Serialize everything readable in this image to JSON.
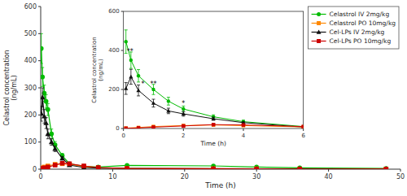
{
  "chart_data": [
    {
      "type": "line",
      "xlabel": "Time (h)",
      "ylabel": "Celastrol concentration\n(ng/mL)",
      "xlim": [
        0,
        50
      ],
      "ylim": [
        0,
        600
      ],
      "xticks": [
        0,
        10,
        20,
        30,
        40,
        50
      ],
      "yticks": [
        0,
        100,
        200,
        300,
        400,
        500,
        600
      ],
      "legend": "upper right",
      "series": [
        {
          "name": "Celastrol IV 2mg/kg",
          "color": "#00bb00",
          "marker": "circle",
          "x": [
            0.083,
            0.25,
            0.5,
            0.75,
            1,
            1.5,
            2,
            3,
            4,
            6,
            8,
            12,
            24,
            30,
            36,
            48
          ],
          "values": [
            445,
            340,
            280,
            250,
            220,
            130,
            90,
            50,
            20,
            10,
            8,
            14,
            12,
            8,
            5,
            3
          ],
          "errors": [
            55,
            35,
            30,
            25,
            22,
            18,
            12,
            8,
            5,
            3,
            2,
            3,
            3,
            2,
            1,
            1
          ]
        },
        {
          "name": "Celastrol PO 10mg/kg",
          "color": "#ff8800",
          "marker": "square",
          "x": [
            0.25,
            0.5,
            1,
            2,
            3,
            4,
            6,
            8,
            12,
            24,
            30,
            36,
            48
          ],
          "values": [
            5,
            8,
            12,
            18,
            20,
            18,
            10,
            5,
            3,
            2,
            1.5,
            1,
            0.5
          ],
          "errors": [
            1,
            1.5,
            2,
            3,
            3,
            3,
            2,
            1,
            0.5,
            0.5,
            0.5,
            0.3,
            0.2
          ]
        },
        {
          "name": "Cel-LPs IV 2mg/kg",
          "color": "#111111",
          "marker": "triangle",
          "x": [
            0.083,
            0.25,
            0.5,
            0.75,
            1,
            1.5,
            2,
            3,
            4,
            6,
            8,
            12,
            24,
            30,
            36,
            48
          ],
          "values": [
            205,
            265,
            195,
            170,
            130,
            100,
            75,
            40,
            15,
            6,
            4,
            3,
            2,
            1.5,
            1,
            0.5
          ],
          "errors": [
            28,
            35,
            25,
            20,
            18,
            12,
            10,
            6,
            3,
            2,
            1,
            1,
            0.5,
            0.5,
            0.3,
            0.2
          ]
        },
        {
          "name": "Cel-LPs PO 10mg/kg",
          "color": "#cc0000",
          "marker": "square",
          "x": [
            0.25,
            0.5,
            1,
            2,
            3,
            4,
            6,
            8,
            12,
            24,
            30,
            36,
            48
          ],
          "values": [
            3,
            5,
            8,
            15,
            22,
            20,
            12,
            6,
            2.5,
            1.2,
            0.8,
            0.5,
            0.2
          ],
          "errors": [
            0.5,
            1,
            1.5,
            2.5,
            3.5,
            3,
            2,
            1.2,
            0.6,
            0.4,
            0.2,
            0.15,
            0.1
          ]
        }
      ]
    },
    {
      "type": "line",
      "xlabel": "Time (h)",
      "ylabel": "Celastrol concentration\n(ng/mL)",
      "xlim": [
        0,
        6
      ],
      "ylim": [
        0,
        600
      ],
      "xticks": [
        0,
        2,
        4,
        6
      ],
      "yticks": [
        0,
        200,
        400,
        600
      ],
      "series": [
        {
          "color": "#00bb00",
          "marker": "circle",
          "x": [
            0.083,
            0.25,
            0.5,
            1,
            1.5,
            2,
            3,
            4,
            6
          ],
          "values": [
            445,
            350,
            270,
            200,
            140,
            100,
            60,
            35,
            10
          ],
          "errors": [
            60,
            42,
            32,
            26,
            20,
            15,
            10,
            8,
            3
          ]
        },
        {
          "color": "#111111",
          "marker": "triangle",
          "x": [
            0.083,
            0.25,
            0.5,
            1,
            1.5,
            2,
            3,
            4,
            6
          ],
          "values": [
            205,
            265,
            195,
            130,
            90,
            75,
            50,
            30,
            7
          ],
          "errors": [
            30,
            38,
            28,
            20,
            14,
            12,
            8,
            5,
            2
          ]
        },
        {
          "color": "#ff8800",
          "marker": "square",
          "x": [
            0.083,
            0.5,
            1,
            2,
            3,
            4,
            6
          ],
          "values": [
            2,
            5,
            10,
            15,
            18,
            15,
            8
          ],
          "errors": [
            0.5,
            1,
            2,
            2.5,
            3,
            2.5,
            1.5
          ]
        },
        {
          "color": "#cc0000",
          "marker": "square",
          "x": [
            0.083,
            0.5,
            1,
            2,
            3,
            4,
            6
          ],
          "values": [
            1,
            3,
            7,
            13,
            20,
            18,
            10
          ],
          "errors": [
            0.3,
            0.8,
            1.5,
            2,
            3,
            2.5,
            1.8
          ]
        }
      ],
      "annotations": [
        {
          "x": 0.22,
          "y": 385,
          "text": "**"
        },
        {
          "x": 1.0,
          "y": 218,
          "text": "**"
        },
        {
          "x": 2.0,
          "y": 118,
          "text": "*"
        },
        {
          "x": 0.65,
          "y": 218,
          "text": "*"
        }
      ]
    }
  ]
}
